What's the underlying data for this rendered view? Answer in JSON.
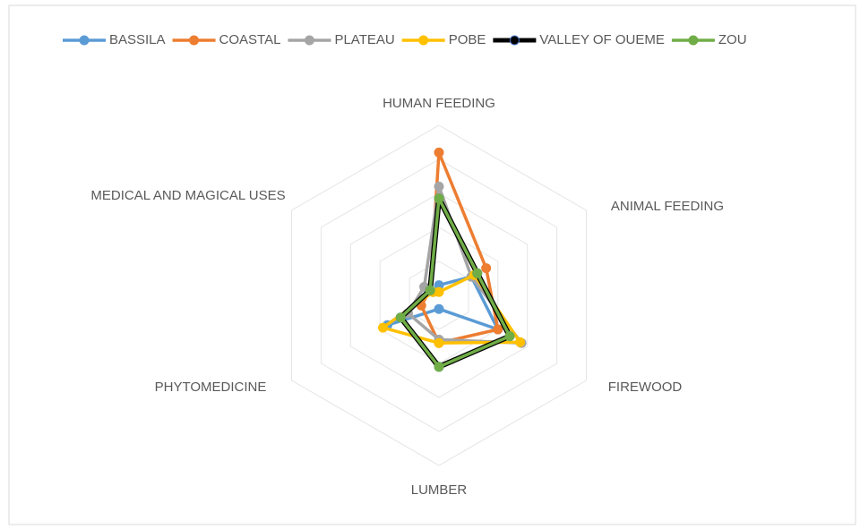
{
  "chart_data": {
    "type": "radar",
    "categories": [
      "HUMAN FEEDING",
      "ANIMAL FEEDING",
      "FIREWOOD",
      "LUMBER",
      "PHYTOMEDICINE",
      "MEDICAL AND MAGICAL USES"
    ],
    "ylim": [
      0,
      5
    ],
    "yticks": [
      1,
      2,
      3,
      4,
      5
    ],
    "grid": true,
    "legend": "top",
    "series": [
      {
        "name": "BASSILA",
        "color": "#5b9bd5",
        "values": [
          0.3,
          1.1,
          2.0,
          0.4,
          1.75,
          0.2
        ]
      },
      {
        "name": "COASTAL",
        "color": "#ed7d31",
        "values": [
          4.2,
          1.6,
          2.0,
          1.4,
          0.6,
          0.3
        ]
      },
      {
        "name": "PLATEAU",
        "color": "#a5a5a5",
        "values": [
          3.2,
          1.1,
          2.8,
          1.3,
          1.05,
          0.5
        ]
      },
      {
        "name": "POBE",
        "color": "#ffc000",
        "values": [
          0.1,
          1.2,
          2.75,
          1.4,
          1.9,
          0.2
        ]
      },
      {
        "name": "VALLEY OF OUEME",
        "color": "#000000",
        "values": [
          2.85,
          1.3,
          2.4,
          2.1,
          1.3,
          0.3
        ]
      },
      {
        "name": "ZOU",
        "color": "#70ad47",
        "values": [
          2.85,
          1.3,
          2.4,
          2.1,
          1.3,
          0.3
        ]
      }
    ]
  }
}
